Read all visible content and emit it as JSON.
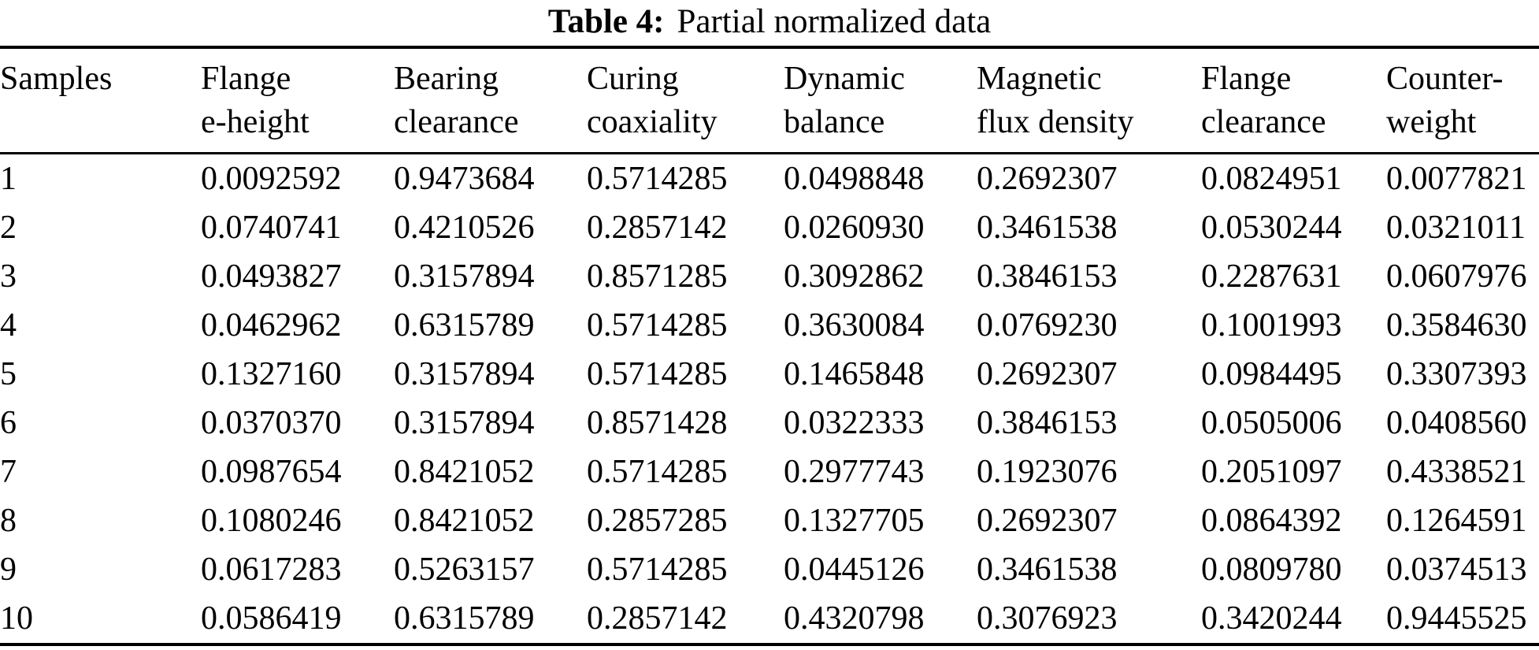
{
  "caption": {
    "label": "Table 4:",
    "text": "Partial normalized data"
  },
  "table": {
    "columns": [
      {
        "line1": "Samples",
        "line2": ""
      },
      {
        "line1": "Flange",
        "line2": "e-height"
      },
      {
        "line1": "Bearing",
        "line2": "clearance"
      },
      {
        "line1": "Curing",
        "line2": "coaxiality"
      },
      {
        "line1": "Dynamic",
        "line2": "balance"
      },
      {
        "line1": "Magnetic",
        "line2": "flux density"
      },
      {
        "line1": "Flange",
        "line2": "clearance"
      },
      {
        "line1": "Counter-",
        "line2": "weight"
      }
    ],
    "rows": [
      [
        "1",
        "0.0092592",
        "0.9473684",
        "0.5714285",
        "0.0498848",
        "0.2692307",
        "0.0824951",
        "0.0077821"
      ],
      [
        "2",
        "0.0740741",
        "0.4210526",
        "0.2857142",
        "0.0260930",
        "0.3461538",
        "0.0530244",
        "0.0321011"
      ],
      [
        "3",
        "0.0493827",
        "0.3157894",
        "0.8571285",
        "0.3092862",
        "0.3846153",
        "0.2287631",
        "0.0607976"
      ],
      [
        "4",
        "0.0462962",
        "0.6315789",
        "0.5714285",
        "0.3630084",
        "0.0769230",
        "0.1001993",
        "0.3584630"
      ],
      [
        "5",
        "0.1327160",
        "0.3157894",
        "0.5714285",
        "0.1465848",
        "0.2692307",
        "0.0984495",
        "0.3307393"
      ],
      [
        "6",
        "0.0370370",
        "0.3157894",
        "0.8571428",
        "0.0322333",
        "0.3846153",
        "0.0505006",
        "0.0408560"
      ],
      [
        "7",
        "0.0987654",
        "0.8421052",
        "0.5714285",
        "0.2977743",
        "0.1923076",
        "0.2051097",
        "0.4338521"
      ],
      [
        "8",
        "0.1080246",
        "0.8421052",
        "0.2857285",
        "0.1327705",
        "0.2692307",
        "0.0864392",
        "0.1264591"
      ],
      [
        "9",
        "0.0617283",
        "0.5263157",
        "0.5714285",
        "0.0445126",
        "0.3461538",
        "0.0809780",
        "0.0374513"
      ],
      [
        "10",
        "0.0586419",
        "0.6315789",
        "0.2857142",
        "0.4320798",
        "0.3076923",
        "0.3420244",
        "0.9445525"
      ]
    ]
  },
  "colors": {
    "background": "#ffffff",
    "text": "#000000",
    "rule": "#000000"
  }
}
